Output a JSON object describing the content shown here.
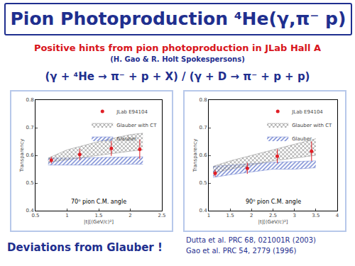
{
  "title": "Pion Photoproduction ⁴He(γ,π⁻ p)",
  "subtitle": "Positive hints from pion photoproduction in JLab Hall A",
  "spokespersons": "(H. Gao & R. Holt Spokespersons)",
  "reaction": "(γ + ⁴He → π⁻ + p + X)  /  (γ + D → π⁻ + p + p)",
  "footer": "Deviations from Glauber !",
  "references": [
    "Dutta et al. PRC 68, 021001R (2003)",
    "Gao et al. PRC 54, 2779 (1996)"
  ],
  "chart_data": [
    {
      "type": "scatter",
      "x_label": "|t|[(GeV/c)²]",
      "y_label": "Transparency",
      "annotation": "70⁰ pion C.M. angle",
      "xlim": [
        0.5,
        2.5
      ],
      "xticks": [
        0.5,
        1,
        1.5,
        2,
        2.5
      ],
      "ylim": [
        0.4,
        0.8
      ],
      "yticks": [
        0.4,
        0.5,
        0.6,
        0.7,
        0.8
      ],
      "grid": false,
      "legend": "upper right",
      "series": [
        {
          "name": "JLab E94104",
          "type": "scatter",
          "color": "#e01f26",
          "marker": "circle",
          "x": [
            0.75,
            1.2,
            1.7,
            2.15
          ],
          "values": [
            0.583,
            0.603,
            0.625,
            0.622
          ],
          "errors": [
            0.012,
            0.02,
            0.027,
            0.035
          ]
        },
        {
          "name": "Glauber with CT",
          "type": "band",
          "color": "#8a8a8a",
          "x": [
            0.7,
            1.0,
            1.5,
            2.0,
            2.2
          ],
          "lower": [
            0.575,
            0.585,
            0.6,
            0.615,
            0.62
          ],
          "upper": [
            0.59,
            0.62,
            0.65,
            0.675,
            0.68
          ]
        },
        {
          "name": "Glauber",
          "type": "band",
          "color": "#6b7fcf",
          "x": [
            0.7,
            1.0,
            1.5,
            2.0,
            2.2
          ],
          "lower": [
            0.565,
            0.565,
            0.565,
            0.568,
            0.568
          ],
          "upper": [
            0.59,
            0.59,
            0.592,
            0.595,
            0.595
          ]
        }
      ]
    },
    {
      "type": "scatter",
      "x_label": "|t|[(GeV/c)²]",
      "y_label": "Transparency",
      "annotation": "90⁰ pion C.M. angle",
      "xlim": [
        1,
        4
      ],
      "xticks": [
        1,
        1.5,
        2,
        2.5,
        3,
        3.5,
        4
      ],
      "ylim": [
        0.4,
        0.8
      ],
      "yticks": [
        0.4,
        0.5,
        0.6,
        0.7,
        0.8
      ],
      "grid": false,
      "legend": "upper right",
      "series": [
        {
          "name": "JLab E94104",
          "type": "scatter",
          "color": "#e01f26",
          "marker": "circle",
          "x": [
            1.15,
            1.9,
            2.6,
            3.4
          ],
          "values": [
            0.535,
            0.553,
            0.597,
            0.615
          ],
          "errors": [
            0.012,
            0.02,
            0.025,
            0.035
          ]
        },
        {
          "name": "Glauber with CT",
          "type": "band",
          "color": "#8a8a8a",
          "x": [
            1.1,
            1.5,
            2,
            2.5,
            3,
            3.5
          ],
          "lower": [
            0.535,
            0.55,
            0.565,
            0.58,
            0.59,
            0.6
          ],
          "upper": [
            0.56,
            0.58,
            0.6,
            0.62,
            0.64,
            0.66
          ]
        },
        {
          "name": "Glauber",
          "type": "band",
          "color": "#6b7fcf",
          "x": [
            1.1,
            1.5,
            2,
            2.5,
            3,
            3.5
          ],
          "lower": [
            0.52,
            0.53,
            0.54,
            0.55,
            0.55,
            0.555
          ],
          "upper": [
            0.56,
            0.565,
            0.57,
            0.575,
            0.578,
            0.58
          ]
        }
      ]
    }
  ]
}
